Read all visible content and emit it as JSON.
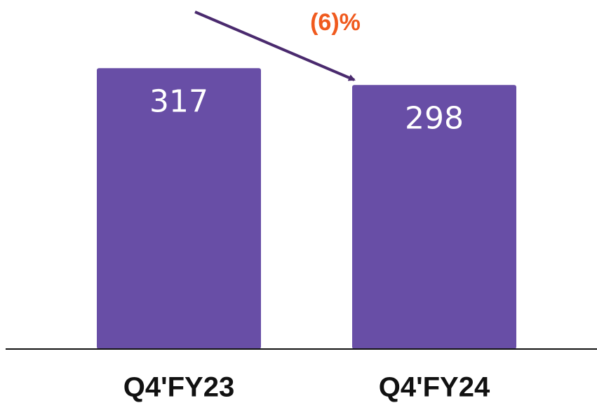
{
  "chart_data": {
    "type": "bar",
    "categories": [
      "Q4'FY23",
      "Q4'FY24"
    ],
    "values": [
      317,
      298
    ],
    "color": "#684ea6",
    "ylim": [
      0,
      390
    ],
    "annotation": "(6)%",
    "annotation_color": "#f05a1e"
  }
}
